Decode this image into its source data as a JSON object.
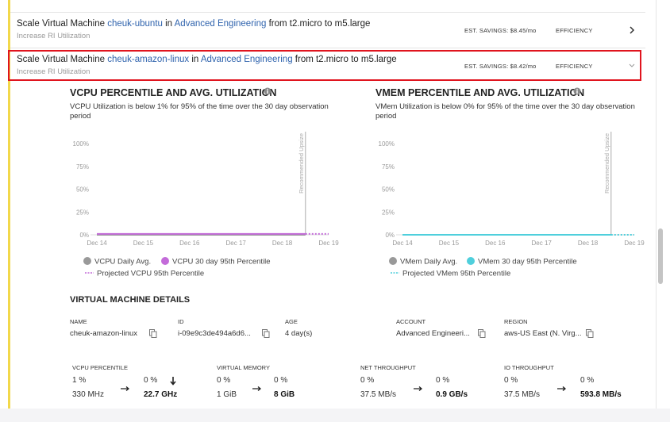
{
  "rows": [
    {
      "prefix": "Scale Virtual Machine",
      "vm": "cheuk-ubuntu",
      "joiner": "in",
      "account": "Advanced Engineering",
      "suffix": "from t2.micro to m5.large",
      "subtitle": "Increase RI Utilization",
      "savings": "EST. SAVINGS: $8.45/mo",
      "category": "EFFICIENCY"
    },
    {
      "prefix": "Scale Virtual Machine",
      "vm": "cheuk-amazon-linux",
      "joiner": "in",
      "account": "Advanced Engineering",
      "suffix": "from t2.micro to m5.large",
      "subtitle": "Increase RI Utilization",
      "savings": "EST. SAVINGS: $8.42/mo",
      "category": "EFFICIENCY"
    }
  ],
  "charts": [
    {
      "type": "line",
      "title": "VCPU PERCENTILE AND AVG. UTILIZATION",
      "subtitle": "VCPU Utilization is below 1% for 95% of the time over the 30 day observation period",
      "xlim": [
        0,
        5
      ],
      "xticks": [
        {
          "value": 0,
          "label": "Dec 14"
        },
        {
          "value": 1,
          "label": "Dec 15"
        },
        {
          "value": 2,
          "label": "Dec 16"
        },
        {
          "value": 3,
          "label": "Dec 17"
        },
        {
          "value": 4,
          "label": "Dec 18"
        },
        {
          "value": 5,
          "label": "Dec 19"
        }
      ],
      "ylim": [
        0,
        100
      ],
      "yticks": [
        {
          "value": 0,
          "label": "0%"
        },
        {
          "value": 25,
          "label": "25%"
        },
        {
          "value": 50,
          "label": "50%"
        },
        {
          "value": 75,
          "label": "75%"
        },
        {
          "value": 100,
          "label": "100%"
        }
      ],
      "grid": false,
      "annotation": {
        "x": 4.5,
        "text": "Recommended Upsize"
      },
      "series": [
        {
          "name": "VCPU Daily Avg.",
          "color": "#999999",
          "style": "solid",
          "x": [
            0,
            1,
            2,
            3,
            4,
            4.5
          ],
          "values": [
            0,
            0,
            0,
            0,
            0,
            0
          ]
        },
        {
          "name": "VCPU 30 day 95th Percentile",
          "color": "#c36bd9",
          "style": "solid",
          "x": [
            0,
            1,
            2,
            3,
            4,
            4.5
          ],
          "values": [
            1,
            1,
            1,
            1,
            1,
            1
          ]
        },
        {
          "name": "Projected VCPU 95th Percentile",
          "color": "#c36bd9",
          "style": "dotted",
          "x": [
            4.5,
            5
          ],
          "values": [
            1,
            1
          ]
        }
      ]
    },
    {
      "type": "line",
      "title": "VMEM PERCENTILE AND AVG. UTILIZATION",
      "subtitle": "VMem Utilization is below 0% for 95% of the time over the 30 day observation period",
      "xlim": [
        0,
        5
      ],
      "xticks": [
        {
          "value": 0,
          "label": "Dec 14"
        },
        {
          "value": 1,
          "label": "Dec 15"
        },
        {
          "value": 2,
          "label": "Dec 16"
        },
        {
          "value": 3,
          "label": "Dec 17"
        },
        {
          "value": 4,
          "label": "Dec 18"
        },
        {
          "value": 5,
          "label": "Dec 19"
        }
      ],
      "ylim": [
        0,
        100
      ],
      "yticks": [
        {
          "value": 0,
          "label": "0%"
        },
        {
          "value": 25,
          "label": "25%"
        },
        {
          "value": 50,
          "label": "50%"
        },
        {
          "value": 75,
          "label": "75%"
        },
        {
          "value": 100,
          "label": "100%"
        }
      ],
      "grid": false,
      "annotation": {
        "x": 4.5,
        "text": "Recommended Upsize"
      },
      "series": [
        {
          "name": "VMem Daily Avg.",
          "color": "#999999",
          "style": "solid",
          "x": [
            0,
            1,
            2,
            3,
            4,
            4.5
          ],
          "values": [
            0,
            0,
            0,
            0,
            0,
            0
          ]
        },
        {
          "name": "VMem 30 day 95th Percentile",
          "color": "#4fcfdc",
          "style": "solid",
          "x": [
            0,
            1,
            2,
            3,
            4,
            4.5
          ],
          "values": [
            0,
            0,
            0,
            0,
            0,
            0
          ]
        },
        {
          "name": "Projected VMem 95th Percentile",
          "color": "#4fcfdc",
          "style": "dotted",
          "x": [
            4.5,
            5
          ],
          "values": [
            0,
            0
          ]
        }
      ]
    }
  ],
  "details": {
    "title": "VIRTUAL MACHINE DETAILS",
    "fields": [
      {
        "label": "NAME",
        "value": "cheuk-amazon-linux"
      },
      {
        "label": "ID",
        "value": "i-09e9c3de494a6d6..."
      },
      {
        "label": "AGE",
        "value": "4 day(s)"
      },
      {
        "label": "ACCOUNT",
        "value": "Advanced Engineeri..."
      },
      {
        "label": "REGION",
        "value": "aws-US East (N. Virg..."
      }
    ]
  },
  "metrics": [
    {
      "label": "VCPU PERCENTILE",
      "current_pct": "1 %",
      "target_pct": "0 %",
      "current": "330 MHz",
      "target": "22.7 GHz"
    },
    {
      "label": "VIRTUAL MEMORY",
      "current_pct": "0 %",
      "target_pct": "0 %",
      "current": "1 GiB",
      "target": "8 GiB"
    },
    {
      "label": "NET THROUGHPUT",
      "current_pct": "0 %",
      "target_pct": "0 %",
      "current": "37.5 MB/s",
      "target": "0.9 GB/s"
    },
    {
      "label": "IO THROUGHPUT",
      "current_pct": "0 %",
      "target_pct": "0 %",
      "current": "37.5 MB/s",
      "target": "593.8 MB/s"
    }
  ]
}
